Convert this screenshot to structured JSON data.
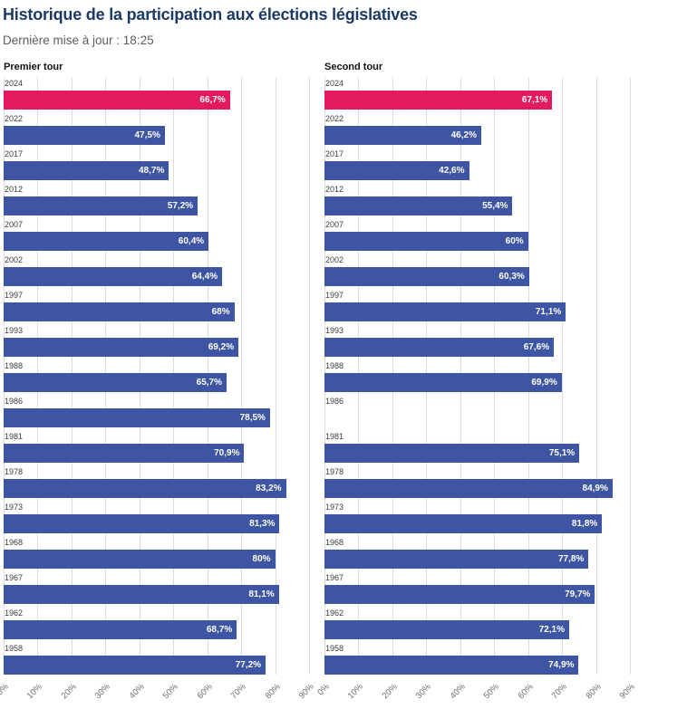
{
  "header": {
    "title": "Historique de la participation aux élections législatives",
    "updated": "Dernière mise à jour : 18:25"
  },
  "colors": {
    "title": "#1c3a63",
    "bar": "#3d55a3",
    "highlight": "#e31a5d",
    "grid": "#dcdcdc"
  },
  "axis": {
    "ticks": [
      "0%",
      "10%",
      "20%",
      "30%",
      "40%",
      "50%",
      "60%",
      "70%",
      "80%",
      "90%"
    ],
    "tick_values": [
      0,
      10,
      20,
      30,
      40,
      50,
      60,
      70,
      80,
      90
    ]
  },
  "chart_data": {
    "type": "bar",
    "orientation": "horizontal",
    "unit": "%",
    "xlim": [
      0,
      90
    ],
    "grid": true,
    "categories": [
      "2024",
      "2022",
      "2017",
      "2012",
      "2007",
      "2002",
      "1997",
      "1993",
      "1988",
      "1986",
      "1981",
      "1978",
      "1973",
      "1968",
      "1967",
      "1962",
      "1958"
    ],
    "charts": [
      {
        "title": "Premier tour",
        "highlight_index": 0,
        "values": [
          66.7,
          47.5,
          48.7,
          57.2,
          60.4,
          64.4,
          68,
          69.2,
          65.7,
          78.5,
          70.9,
          83.2,
          81.3,
          80,
          81.1,
          68.7,
          77.2
        ],
        "labels": [
          "66,7%",
          "47,5%",
          "48,7%",
          "57,2%",
          "60,4%",
          "64,4%",
          "68%",
          "69,2%",
          "65,7%",
          "78,5%",
          "70,9%",
          "83,2%",
          "81,3%",
          "80%",
          "81,1%",
          "68,7%",
          "77,2%"
        ]
      },
      {
        "title": "Second tour",
        "highlight_index": 0,
        "values": [
          67.1,
          46.2,
          42.6,
          55.4,
          60,
          60.3,
          71.1,
          67.6,
          69.9,
          null,
          75.1,
          84.9,
          81.8,
          77.8,
          79.7,
          72.1,
          74.9
        ],
        "labels": [
          "67,1%",
          "46,2%",
          "42,6%",
          "55,4%",
          "60%",
          "60,3%",
          "71,1%",
          "67,6%",
          "69,9%",
          null,
          "75,1%",
          "84,9%",
          "81,8%",
          "77,8%",
          "79,7%",
          "72,1%",
          "74,9%"
        ]
      }
    ]
  }
}
